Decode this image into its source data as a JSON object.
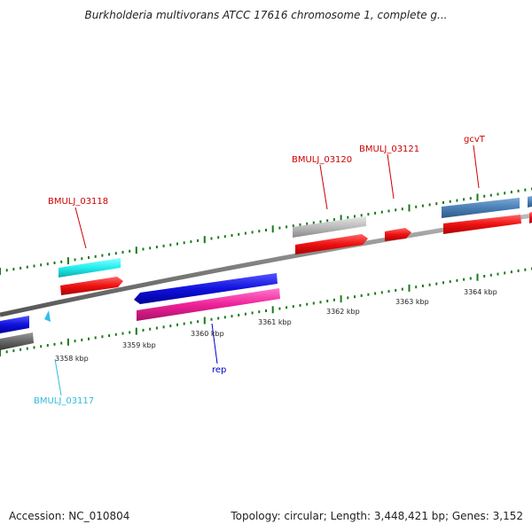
{
  "title": "Burkholderia multivorans ATCC 17616 chromosome 1, complete g...",
  "footer": {
    "accession": "Accession: NC_010804",
    "summary": "Topology: circular; Length: 3,448,421 bp; Genes: 3,152"
  },
  "kbp_labels": [
    "3358 kbp",
    "3359 kbp",
    "3360 kbp",
    "3361 kbp",
    "3362 kbp",
    "3363 kbp",
    "3364 kbp"
  ],
  "gene_labels": [
    {
      "id": "BMULJ_03117",
      "text": "BMULJ_03117",
      "color": "#33bbdd"
    },
    {
      "id": "BMULJ_03118",
      "text": "BMULJ_03118",
      "color": "#cc0000"
    },
    {
      "id": "BMULJ_03120",
      "text": "BMULJ_03120",
      "color": "#cc0000"
    },
    {
      "id": "BMULJ_03121",
      "text": "BMULJ_03121",
      "color": "#cc0000"
    },
    {
      "id": "gcvT",
      "text": "gcvT",
      "color": "#cc0000"
    },
    {
      "id": "rep",
      "text": "rep",
      "color": "#0000cc"
    }
  ],
  "colors": {
    "backbone": "#808080",
    "tick": "#1a7a1a",
    "cds_red": "#ee1111",
    "gene_cyan": "#22eeee",
    "gene_blue": "#1111dd",
    "gene_pink": "#ee2299",
    "gene_gray": "#bbbbbb",
    "gene_steel": "#4a7fb5",
    "gene_darkgray": "#666666"
  }
}
